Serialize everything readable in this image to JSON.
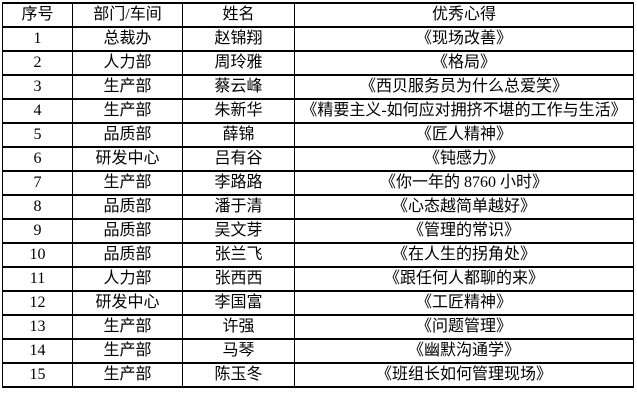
{
  "meta": {
    "background_color": "#ffffff",
    "border_color": "#000000",
    "text_color": "#000000"
  },
  "table": {
    "headers": [
      "序号",
      "部门/车间",
      "姓名",
      "优秀心得"
    ],
    "rows": [
      {
        "index": "1",
        "department": "总裁办",
        "name": "赵锦翔",
        "title": "《现场改善》"
      },
      {
        "index": "2",
        "department": "人力部",
        "name": "周玲雅",
        "title": "《格局》"
      },
      {
        "index": "3",
        "department": "生产部",
        "name": "蔡云峰",
        "title": "《西贝服务员为什么总爱笑》"
      },
      {
        "index": "4",
        "department": "生产部",
        "name": "朱新华",
        "title": "《精要主义-如何应对拥挤不堪的工作与生活》"
      },
      {
        "index": "5",
        "department": "品质部",
        "name": "薛锦",
        "title": "《匠人精神》"
      },
      {
        "index": "6",
        "department": "研发中心",
        "name": "吕有谷",
        "title": "《钝感力》"
      },
      {
        "index": "7",
        "department": "生产部",
        "name": "李路路",
        "title": "《你一年的 8760 小时》"
      },
      {
        "index": "8",
        "department": "品质部",
        "name": "潘于清",
        "title": "《心态越简单越好》"
      },
      {
        "index": "9",
        "department": "品质部",
        "name": "吴文芽",
        "title": "《管理的常识》"
      },
      {
        "index": "10",
        "department": "品质部",
        "name": "张兰飞",
        "title": "《在人生的拐角处》"
      },
      {
        "index": "11",
        "department": "人力部",
        "name": "张西西",
        "title": "《跟任何人都聊的来》"
      },
      {
        "index": "12",
        "department": "研发中心",
        "name": "李国富",
        "title": "《工匠精神》"
      },
      {
        "index": "13",
        "department": "生产部",
        "name": "许强",
        "title": "《问题管理》"
      },
      {
        "index": "14",
        "department": "生产部",
        "name": "马琴",
        "title": "《幽默沟通学》"
      },
      {
        "index": "15",
        "department": "生产部",
        "name": "陈玉冬",
        "title": "《班组长如何管理现场》"
      }
    ]
  }
}
